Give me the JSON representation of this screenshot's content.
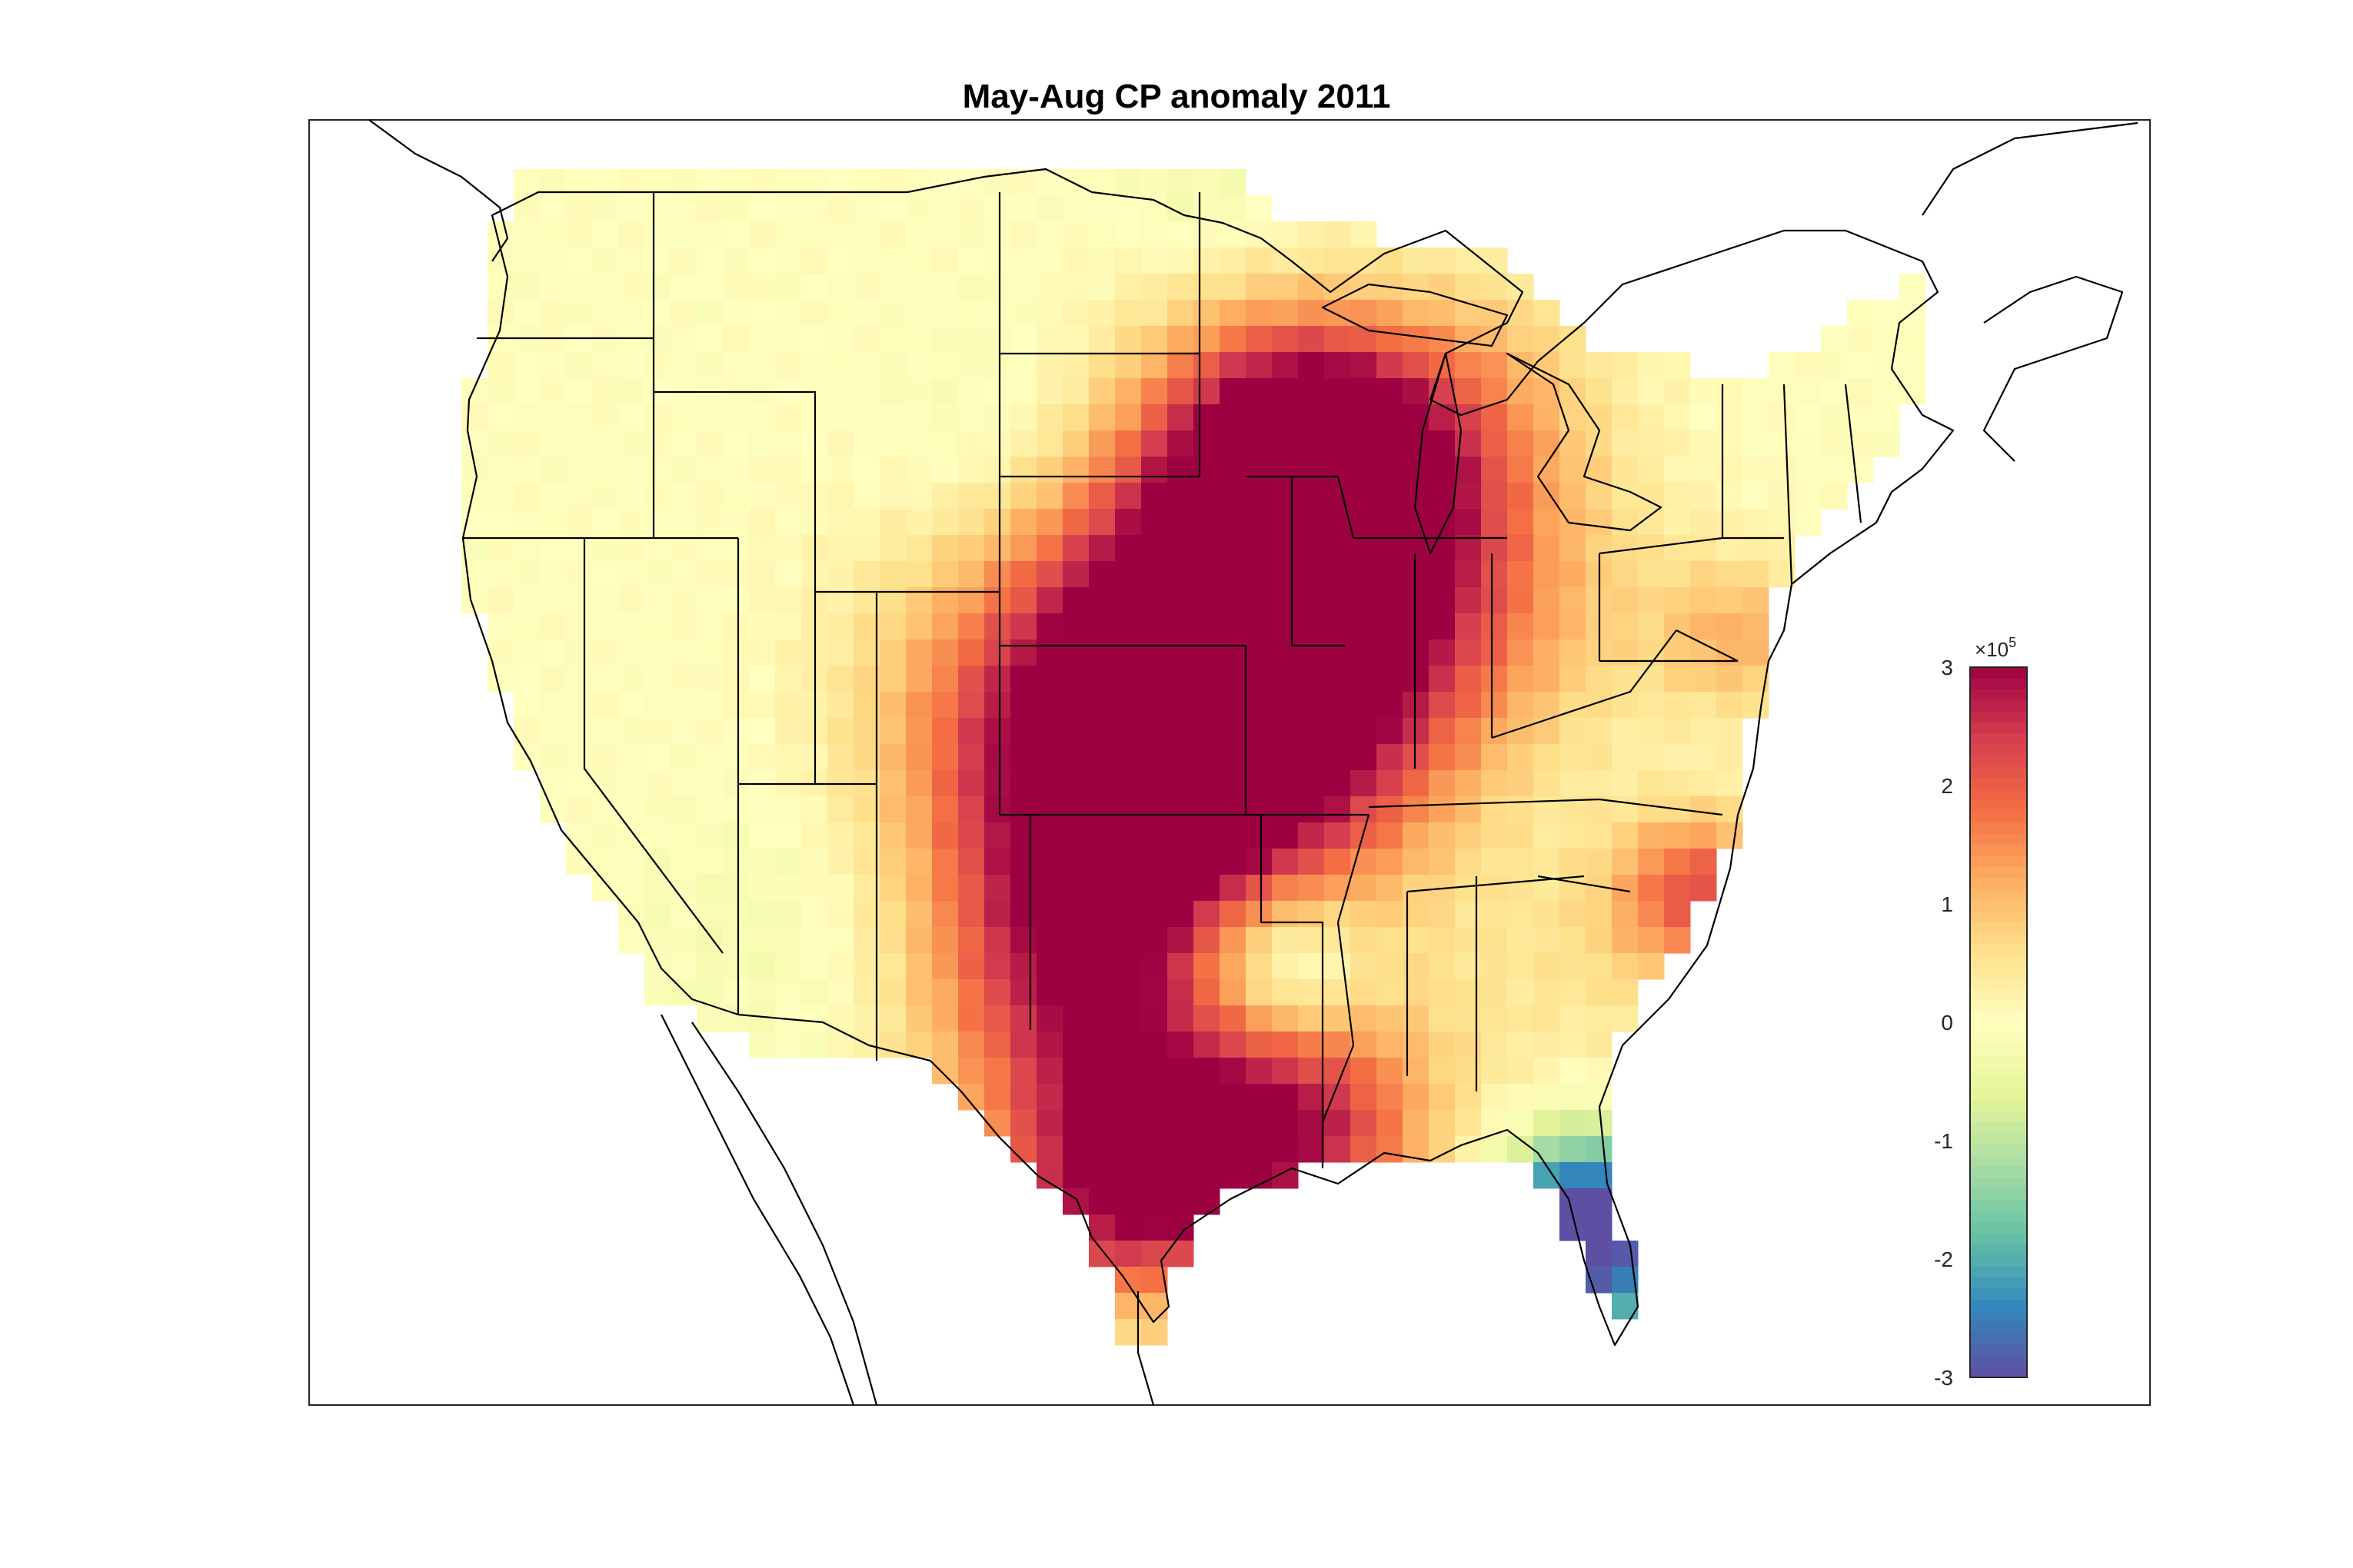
{
  "title": "May-Aug CP anomaly 2011",
  "colorbar": {
    "min": -3,
    "max": 3,
    "ticks": [
      "3",
      "2",
      "1",
      "0",
      "-1",
      "-2",
      "-3"
    ],
    "exponent_base": "×10",
    "exponent_power": "5",
    "colormap": "spectral",
    "colors": [
      "#5e4fa2",
      "#3288bd",
      "#66c2a5",
      "#abdda4",
      "#e6f598",
      "#ffffbf",
      "#fee08b",
      "#fdae61",
      "#f46d43",
      "#d53e4f",
      "#9e0142"
    ]
  },
  "map": {
    "region": "Contiguous United States",
    "boundaries": "state borders and coastlines",
    "anomaly_hotspots": [
      {
        "region": "Iowa / southern Minnesota",
        "level": "high positive"
      },
      {
        "region": "Kansas / Missouri",
        "level": "positive"
      },
      {
        "region": "Oklahoma / Texas",
        "level": "positive"
      },
      {
        "region": "south Texas",
        "level": "high positive"
      },
      {
        "region": "Louisiana",
        "level": "positive"
      },
      {
        "region": "southern Florida",
        "level": "negative"
      },
      {
        "region": "Arkansas / Louisiana border",
        "level": "slightly negative"
      }
    ]
  }
}
